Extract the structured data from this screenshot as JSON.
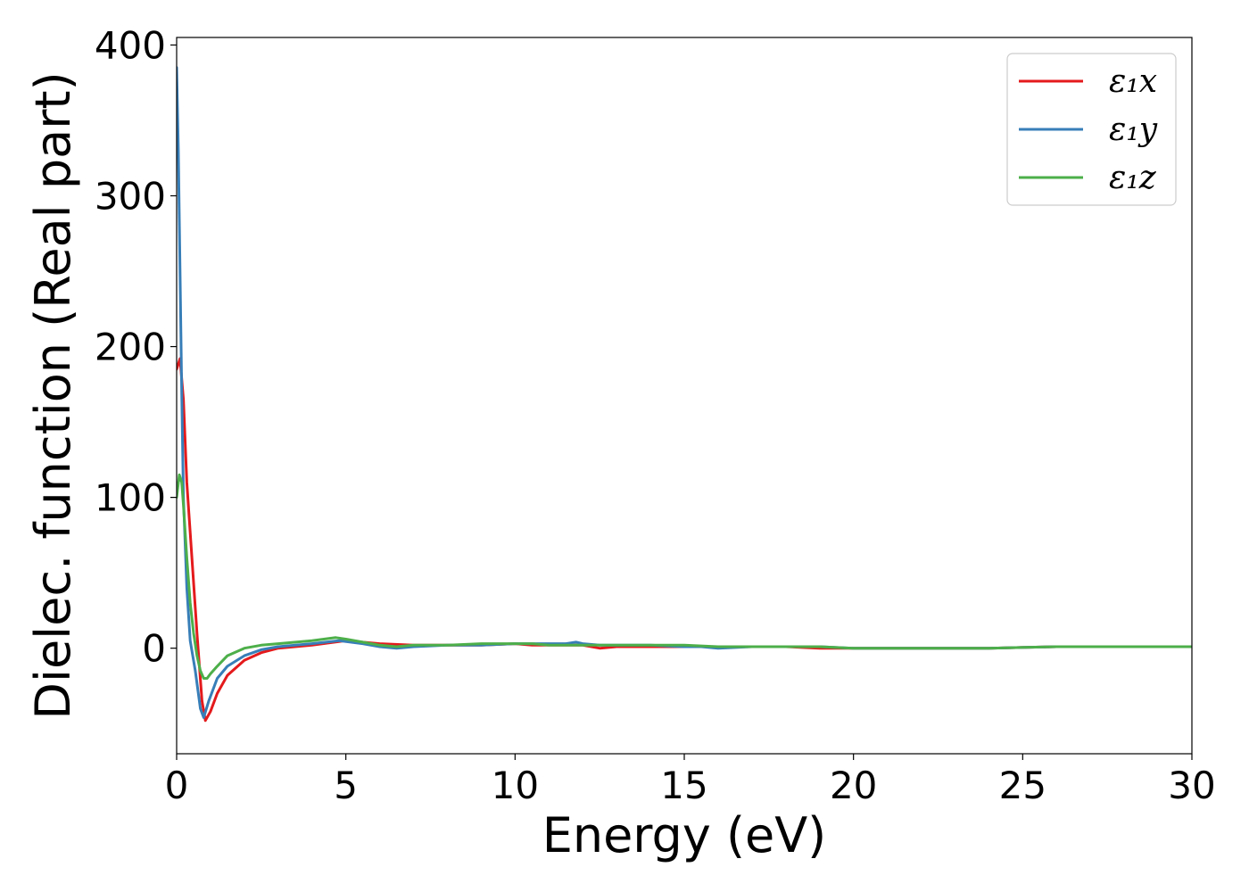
{
  "chart_data": {
    "type": "line",
    "title": "",
    "xlabel": "Energy (eV)",
    "ylabel": "Dielec. function (Real part)",
    "xlim": [
      0,
      30
    ],
    "ylim": [
      -70,
      405
    ],
    "xticks": [
      0,
      5,
      10,
      15,
      20,
      25,
      30
    ],
    "yticks": [
      0,
      100,
      200,
      300,
      400
    ],
    "grid": false,
    "legend_position": "top-right",
    "series": [
      {
        "name": "ε₁x",
        "color": "#e41a1c",
        "x": [
          0,
          0.1,
          0.2,
          0.3,
          0.45,
          0.6,
          0.75,
          0.85,
          1.0,
          1.2,
          1.5,
          2.0,
          2.5,
          3.0,
          4.0,
          5.0,
          6.0,
          7.0,
          8.0,
          9.0,
          10.0,
          10.5,
          11.0,
          12.0,
          12.5,
          13.0,
          14.0,
          15.0,
          16.0,
          17.0,
          18.0,
          19.0,
          20.0,
          22.0,
          24.0,
          26.0,
          28.0,
          30.0
        ],
        "y": [
          185,
          192,
          165,
          110,
          60,
          10,
          -35,
          -48,
          -42,
          -30,
          -18,
          -8,
          -3,
          0,
          2,
          5,
          3,
          2,
          2,
          2,
          3,
          2,
          2,
          2,
          0,
          1,
          1,
          1,
          1,
          1,
          1,
          0,
          0,
          0,
          0,
          1,
          1,
          1
        ]
      },
      {
        "name": "ε₁y",
        "color": "#377eb8",
        "x": [
          0,
          0.05,
          0.1,
          0.15,
          0.2,
          0.3,
          0.4,
          0.55,
          0.7,
          0.8,
          0.95,
          1.2,
          1.5,
          2.0,
          2.5,
          3.0,
          4.0,
          4.8,
          5.5,
          6.0,
          6.5,
          7.0,
          8.0,
          9.0,
          10.0,
          11.0,
          11.5,
          11.8,
          12.0,
          12.5,
          13.0,
          14.0,
          15.0,
          15.5,
          16.0,
          17.0,
          18.0,
          19.0,
          20.0,
          22.0,
          24.0,
          26.0,
          28.0,
          30.0
        ],
        "y": [
          385,
          330,
          250,
          170,
          100,
          40,
          5,
          -15,
          -40,
          -46,
          -35,
          -20,
          -12,
          -5,
          -1,
          1,
          3,
          5,
          3,
          1,
          0,
          1,
          2,
          2,
          3,
          3,
          3,
          4,
          3,
          2,
          2,
          2,
          1,
          1,
          0,
          1,
          1,
          1,
          0,
          0,
          0,
          1,
          1,
          1
        ]
      },
      {
        "name": "ε₁z",
        "color": "#4daf4a",
        "x": [
          0,
          0.08,
          0.15,
          0.2,
          0.3,
          0.4,
          0.5,
          0.6,
          0.7,
          0.8,
          0.9,
          1.0,
          1.2,
          1.5,
          2.0,
          2.5,
          3.0,
          4.0,
          4.7,
          5.0,
          5.5,
          6.0,
          6.5,
          7.0,
          8.0,
          9.0,
          10.0,
          10.5,
          11.0,
          12.0,
          13.0,
          14.0,
          15.0,
          16.0,
          17.0,
          18.0,
          19.0,
          20.0,
          22.0,
          24.0,
          26.0,
          28.0,
          30.0
        ],
        "y": [
          100,
          115,
          110,
          95,
          60,
          30,
          10,
          -5,
          -15,
          -20,
          -20,
          -17,
          -12,
          -5,
          0,
          2,
          3,
          5,
          7,
          6,
          4,
          2,
          1,
          2,
          2,
          3,
          3,
          3,
          2,
          2,
          2,
          2,
          2,
          1,
          1,
          1,
          1,
          0,
          0,
          0,
          1,
          1,
          1
        ]
      }
    ]
  }
}
